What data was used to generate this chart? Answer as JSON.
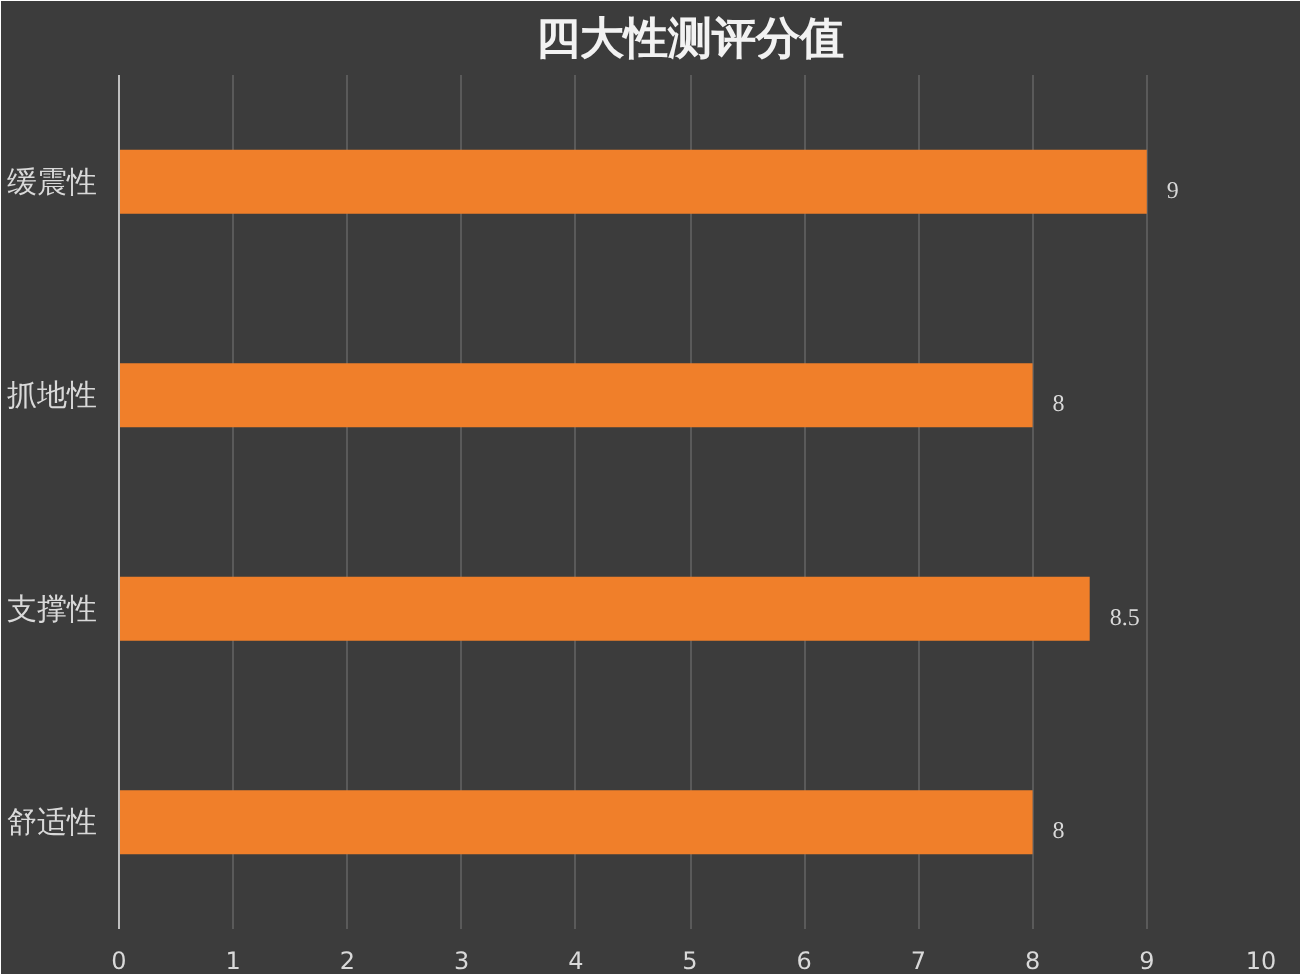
{
  "chart_data": {
    "type": "bar",
    "orientation": "horizontal",
    "title": "四大性测评分值",
    "categories": [
      "缓震性",
      "抓地性",
      "支撑性",
      "舒适性"
    ],
    "values": [
      9,
      8,
      8.5,
      8
    ],
    "color": "#f07f2a",
    "xlim": [
      0,
      10
    ],
    "xticks": [
      0,
      1,
      2,
      3,
      4,
      5,
      6,
      7,
      8,
      9,
      10
    ],
    "grid": "x",
    "data_labels": true
  }
}
